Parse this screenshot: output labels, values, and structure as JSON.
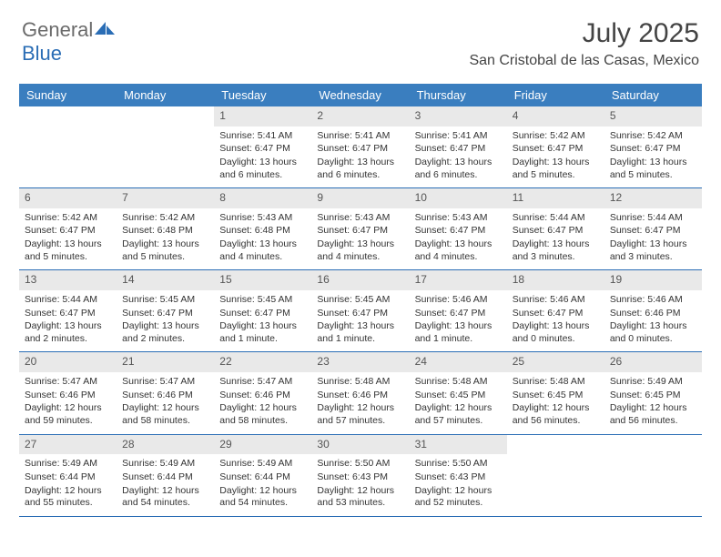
{
  "logo": {
    "general": "General",
    "blue": "Blue"
  },
  "title": {
    "month": "July 2025",
    "location": "San Cristobal de las Casas, Mexico"
  },
  "colors": {
    "headerBg": "#3a7ebf",
    "headerText": "#ffffff",
    "dayNumBg": "#e9e9e9",
    "weekBorder": "#2a6db5",
    "logoBlue": "#2a6db5",
    "logoGray": "#6b6b6b"
  },
  "dayNames": [
    "Sunday",
    "Monday",
    "Tuesday",
    "Wednesday",
    "Thursday",
    "Friday",
    "Saturday"
  ],
  "weeks": [
    [
      {
        "empty": true
      },
      {
        "empty": true
      },
      {
        "num": "1",
        "sunrise": "5:41 AM",
        "sunset": "6:47 PM",
        "daylight": "13 hours and 6 minutes."
      },
      {
        "num": "2",
        "sunrise": "5:41 AM",
        "sunset": "6:47 PM",
        "daylight": "13 hours and 6 minutes."
      },
      {
        "num": "3",
        "sunrise": "5:41 AM",
        "sunset": "6:47 PM",
        "daylight": "13 hours and 6 minutes."
      },
      {
        "num": "4",
        "sunrise": "5:42 AM",
        "sunset": "6:47 PM",
        "daylight": "13 hours and 5 minutes."
      },
      {
        "num": "5",
        "sunrise": "5:42 AM",
        "sunset": "6:47 PM",
        "daylight": "13 hours and 5 minutes."
      }
    ],
    [
      {
        "num": "6",
        "sunrise": "5:42 AM",
        "sunset": "6:47 PM",
        "daylight": "13 hours and 5 minutes."
      },
      {
        "num": "7",
        "sunrise": "5:42 AM",
        "sunset": "6:48 PM",
        "daylight": "13 hours and 5 minutes."
      },
      {
        "num": "8",
        "sunrise": "5:43 AM",
        "sunset": "6:48 PM",
        "daylight": "13 hours and 4 minutes."
      },
      {
        "num": "9",
        "sunrise": "5:43 AM",
        "sunset": "6:47 PM",
        "daylight": "13 hours and 4 minutes."
      },
      {
        "num": "10",
        "sunrise": "5:43 AM",
        "sunset": "6:47 PM",
        "daylight": "13 hours and 4 minutes."
      },
      {
        "num": "11",
        "sunrise": "5:44 AM",
        "sunset": "6:47 PM",
        "daylight": "13 hours and 3 minutes."
      },
      {
        "num": "12",
        "sunrise": "5:44 AM",
        "sunset": "6:47 PM",
        "daylight": "13 hours and 3 minutes."
      }
    ],
    [
      {
        "num": "13",
        "sunrise": "5:44 AM",
        "sunset": "6:47 PM",
        "daylight": "13 hours and 2 minutes."
      },
      {
        "num": "14",
        "sunrise": "5:45 AM",
        "sunset": "6:47 PM",
        "daylight": "13 hours and 2 minutes."
      },
      {
        "num": "15",
        "sunrise": "5:45 AM",
        "sunset": "6:47 PM",
        "daylight": "13 hours and 1 minute."
      },
      {
        "num": "16",
        "sunrise": "5:45 AM",
        "sunset": "6:47 PM",
        "daylight": "13 hours and 1 minute."
      },
      {
        "num": "17",
        "sunrise": "5:46 AM",
        "sunset": "6:47 PM",
        "daylight": "13 hours and 1 minute."
      },
      {
        "num": "18",
        "sunrise": "5:46 AM",
        "sunset": "6:47 PM",
        "daylight": "13 hours and 0 minutes."
      },
      {
        "num": "19",
        "sunrise": "5:46 AM",
        "sunset": "6:46 PM",
        "daylight": "13 hours and 0 minutes."
      }
    ],
    [
      {
        "num": "20",
        "sunrise": "5:47 AM",
        "sunset": "6:46 PM",
        "daylight": "12 hours and 59 minutes."
      },
      {
        "num": "21",
        "sunrise": "5:47 AM",
        "sunset": "6:46 PM",
        "daylight": "12 hours and 58 minutes."
      },
      {
        "num": "22",
        "sunrise": "5:47 AM",
        "sunset": "6:46 PM",
        "daylight": "12 hours and 58 minutes."
      },
      {
        "num": "23",
        "sunrise": "5:48 AM",
        "sunset": "6:46 PM",
        "daylight": "12 hours and 57 minutes."
      },
      {
        "num": "24",
        "sunrise": "5:48 AM",
        "sunset": "6:45 PM",
        "daylight": "12 hours and 57 minutes."
      },
      {
        "num": "25",
        "sunrise": "5:48 AM",
        "sunset": "6:45 PM",
        "daylight": "12 hours and 56 minutes."
      },
      {
        "num": "26",
        "sunrise": "5:49 AM",
        "sunset": "6:45 PM",
        "daylight": "12 hours and 56 minutes."
      }
    ],
    [
      {
        "num": "27",
        "sunrise": "5:49 AM",
        "sunset": "6:44 PM",
        "daylight": "12 hours and 55 minutes."
      },
      {
        "num": "28",
        "sunrise": "5:49 AM",
        "sunset": "6:44 PM",
        "daylight": "12 hours and 54 minutes."
      },
      {
        "num": "29",
        "sunrise": "5:49 AM",
        "sunset": "6:44 PM",
        "daylight": "12 hours and 54 minutes."
      },
      {
        "num": "30",
        "sunrise": "5:50 AM",
        "sunset": "6:43 PM",
        "daylight": "12 hours and 53 minutes."
      },
      {
        "num": "31",
        "sunrise": "5:50 AM",
        "sunset": "6:43 PM",
        "daylight": "12 hours and 52 minutes."
      },
      {
        "empty": true
      },
      {
        "empty": true
      }
    ]
  ],
  "labels": {
    "sunrise": "Sunrise:",
    "sunset": "Sunset:",
    "daylight": "Daylight:"
  }
}
